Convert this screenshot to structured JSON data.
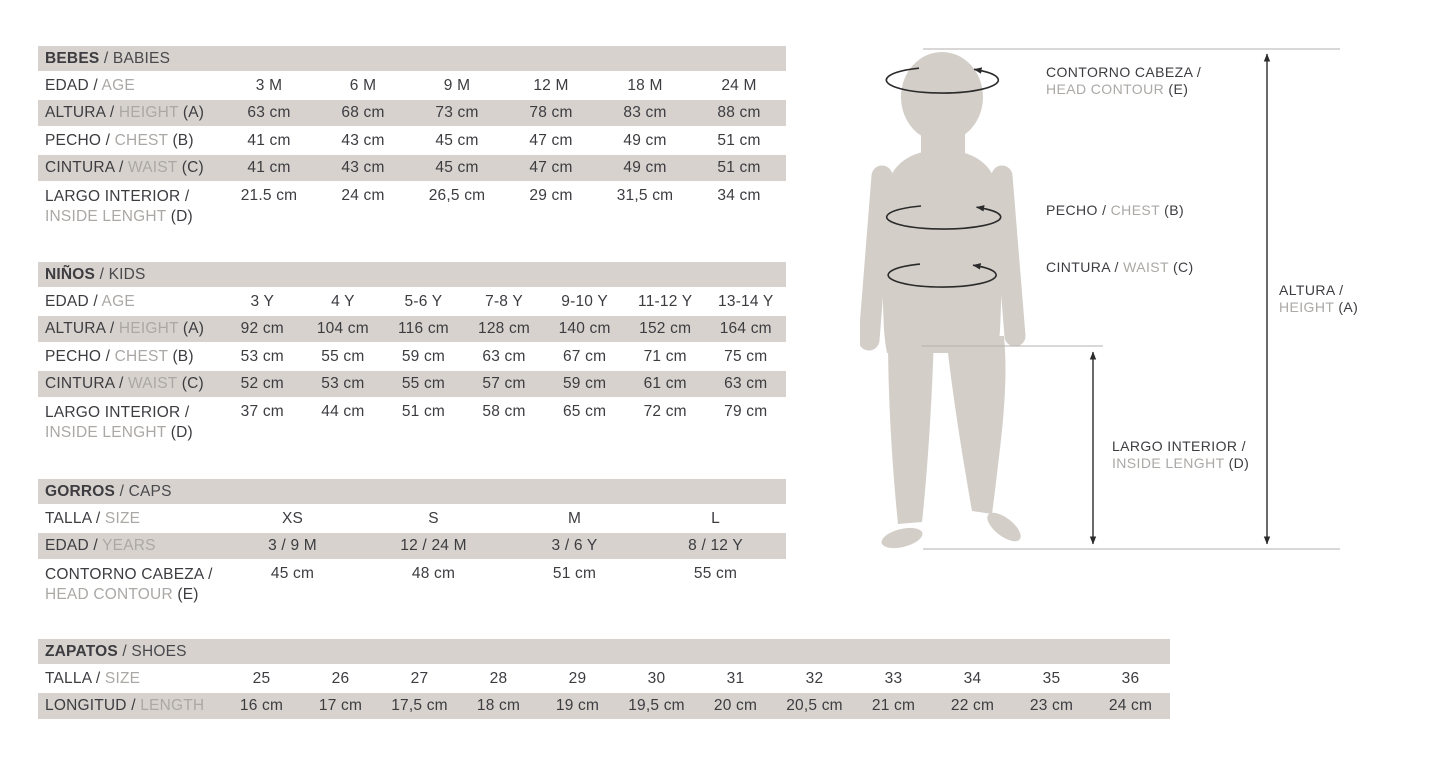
{
  "colors": {
    "band_bg": "#d7d2cd",
    "text_dark": "#3c3c41",
    "text_gray": "#aba8a5",
    "header_en": "#48484d",
    "silhouette": "#d3cec8",
    "thin_line": "#b3b0ad",
    "arrow": "#2b2b2b"
  },
  "tables": [
    {
      "id": "babies",
      "header": {
        "es": "BEBES",
        "en": "BABIES"
      },
      "rows": [
        {
          "es": "EDAD /",
          "en": "AGE",
          "suffix": "",
          "shaded": false,
          "twoline": false,
          "values": [
            "3 M",
            "6 M",
            "9 M",
            "12 M",
            "18 M",
            "24 M"
          ]
        },
        {
          "es": "ALTURA /",
          "en": "HEIGHT",
          "suffix": "(A)",
          "shaded": true,
          "twoline": false,
          "values": [
            "63 cm",
            "68 cm",
            "73 cm",
            "78 cm",
            "83 cm",
            "88 cm"
          ]
        },
        {
          "es": "PECHO /",
          "en": "CHEST",
          "suffix": "(B)",
          "shaded": false,
          "twoline": false,
          "values": [
            "41 cm",
            "43 cm",
            "45 cm",
            "47 cm",
            "49 cm",
            "51 cm"
          ]
        },
        {
          "es": "CINTURA /",
          "en": "WAIST",
          "suffix": "(C)",
          "shaded": true,
          "twoline": false,
          "values": [
            "41 cm",
            "43 cm",
            "45 cm",
            "47 cm",
            "49 cm",
            "51 cm"
          ]
        },
        {
          "es": "LARGO INTERIOR /",
          "en": "INSIDE LENGHT",
          "suffix": "(D)",
          "shaded": false,
          "twoline": true,
          "values": [
            "21.5 cm",
            "24 cm",
            "26,5 cm",
            "29 cm",
            "31,5 cm",
            "34 cm"
          ]
        }
      ]
    },
    {
      "id": "kids",
      "header": {
        "es": "NIÑOS",
        "en": "KIDS"
      },
      "rows": [
        {
          "es": "EDAD /",
          "en": "AGE",
          "suffix": "",
          "shaded": false,
          "twoline": false,
          "values": [
            "3 Y",
            "4 Y",
            "5-6 Y",
            "7-8 Y",
            "9-10 Y",
            "11-12 Y",
            "13-14 Y"
          ]
        },
        {
          "es": "ALTURA /",
          "en": "HEIGHT",
          "suffix": "(A)",
          "shaded": true,
          "twoline": false,
          "values": [
            "92 cm",
            "104 cm",
            "116 cm",
            "128 cm",
            "140 cm",
            "152 cm",
            "164 cm"
          ]
        },
        {
          "es": "PECHO /",
          "en": "CHEST",
          "suffix": "(B)",
          "shaded": false,
          "twoline": false,
          "values": [
            "53 cm",
            "55 cm",
            "59 cm",
            "63 cm",
            "67 cm",
            "71 cm",
            "75 cm"
          ]
        },
        {
          "es": "CINTURA /",
          "en": "WAIST",
          "suffix": "(C)",
          "shaded": true,
          "twoline": false,
          "values": [
            "52 cm",
            "53 cm",
            "55 cm",
            "57 cm",
            "59 cm",
            "61 cm",
            "63 cm"
          ]
        },
        {
          "es": "LARGO INTERIOR /",
          "en": "INSIDE LENGHT",
          "suffix": "(D)",
          "shaded": false,
          "twoline": true,
          "values": [
            "37 cm",
            "44 cm",
            "51 cm",
            "58 cm",
            "65 cm",
            "72 cm",
            "79 cm"
          ]
        }
      ]
    },
    {
      "id": "caps",
      "header": {
        "es": "GORROS",
        "en": "CAPS"
      },
      "rows": [
        {
          "es": "TALLA /",
          "en": "SIZE",
          "suffix": "",
          "shaded": false,
          "twoline": false,
          "values": [
            "XS",
            "S",
            "M",
            "L"
          ]
        },
        {
          "es": "EDAD /",
          "en": "YEARS",
          "suffix": "",
          "shaded": true,
          "twoline": false,
          "values": [
            "3 / 9 M",
            "12 / 24 M",
            "3 / 6 Y",
            "8 / 12 Y"
          ]
        },
        {
          "es": "CONTORNO CABEZA /",
          "en": "HEAD CONTOUR",
          "suffix": "(E)",
          "shaded": false,
          "twoline": true,
          "values": [
            "45 cm",
            "48 cm",
            "51 cm",
            "55 cm"
          ]
        }
      ]
    },
    {
      "id": "shoes",
      "header": {
        "es": "ZAPATOS",
        "en": "SHOES"
      },
      "rows": [
        {
          "es": "TALLA /",
          "en": "SIZE",
          "suffix": "",
          "shaded": false,
          "twoline": false,
          "values": [
            "25",
            "26",
            "27",
            "28",
            "29",
            "30",
            "31",
            "32",
            "33",
            "34",
            "35",
            "36"
          ]
        },
        {
          "es": "LONGITUD /",
          "en": "LENGTH",
          "suffix": "",
          "shaded": true,
          "twoline": false,
          "values": [
            "16 cm",
            "17 cm",
            "17,5 cm",
            "18 cm",
            "19 cm",
            "19,5 cm",
            "20 cm",
            "20,5 cm",
            "21 cm",
            "22 cm",
            "23 cm",
            "24 cm"
          ]
        }
      ]
    }
  ],
  "figure": {
    "head": {
      "es": "CONTORNO CABEZA /",
      "en": "HEAD CONTOUR",
      "suffix": "(E)"
    },
    "chest": {
      "es": "PECHO /",
      "en": "CHEST",
      "suffix": "(B)"
    },
    "waist": {
      "es": "CINTURA /",
      "en": "WAIST",
      "suffix": "(C)"
    },
    "height": {
      "es": "ALTURA /",
      "en": "HEIGHT",
      "suffix": "(A)"
    },
    "inseam": {
      "es": "LARGO INTERIOR /",
      "en": "INSIDE LENGHT",
      "suffix": "(D)"
    }
  }
}
